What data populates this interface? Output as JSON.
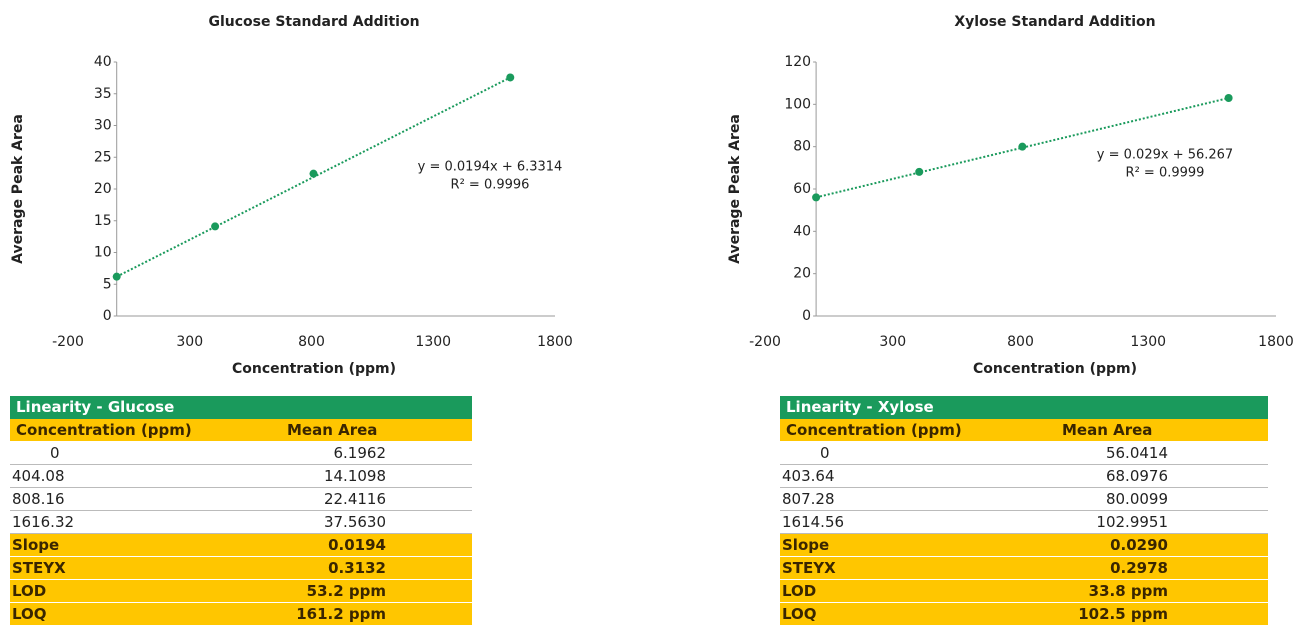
{
  "chart_data": [
    {
      "type": "scatter",
      "title": "Glucose Standard Addition",
      "x_label": "Concentration (ppm)",
      "y_label": "Average Peak Area",
      "x": [
        0,
        404.08,
        808.16,
        1616.32
      ],
      "values": [
        6.1962,
        14.1098,
        22.4116,
        37.563
      ],
      "color": "#1a9a5c",
      "xlim": [
        -200,
        1800
      ],
      "xticks": [
        -200,
        300,
        800,
        1300,
        1800
      ],
      "ylim": [
        0,
        40
      ],
      "yticks": [
        0,
        5,
        10,
        15,
        20,
        25,
        30,
        35,
        40
      ],
      "trendline": "dotted",
      "annotations": [
        "y = 0.0194x + 6.3314",
        "R² = 0.9996"
      ]
    },
    {
      "type": "scatter",
      "title": "Xylose Standard Addition",
      "x_label": "Concentration (ppm)",
      "y_label": "Average Peak Area",
      "x": [
        0,
        403.64,
        807.28,
        1614.56
      ],
      "values": [
        56.0414,
        68.0976,
        80.0099,
        102.9951
      ],
      "color": "#1a9a5c",
      "xlim": [
        -200,
        1800
      ],
      "xticks": [
        -200,
        300,
        800,
        1300,
        1800
      ],
      "ylim": [
        0,
        120
      ],
      "yticks": [
        0,
        20,
        40,
        60,
        80,
        100,
        120
      ],
      "trendline": "dotted",
      "annotations": [
        "y = 0.029x + 56.267",
        "R² = 0.9999"
      ]
    }
  ],
  "tables": [
    {
      "title": "Linearity - Glucose",
      "header": [
        "Concentration (ppm)",
        "Mean Area"
      ],
      "rows": [
        [
          "0",
          "6.1962"
        ],
        [
          "404.08",
          "14.1098"
        ],
        [
          "808.16",
          "22.4116"
        ],
        [
          "1616.32",
          "37.5630"
        ]
      ],
      "stats": [
        [
          "Slope",
          "0.0194"
        ],
        [
          "STEYX",
          "0.3132"
        ],
        [
          "LOD",
          "53.2 ppm"
        ],
        [
          "LOQ",
          "161.2 ppm"
        ]
      ]
    },
    {
      "title": "Linearity - Xylose",
      "header": [
        "Concentration (ppm)",
        "Mean Area"
      ],
      "rows": [
        [
          "0",
          "56.0414"
        ],
        [
          "403.64",
          "68.0976"
        ],
        [
          "807.28",
          "80.0099"
        ],
        [
          "1614.56",
          "102.9951"
        ]
      ],
      "stats": [
        [
          "Slope",
          "0.0290"
        ],
        [
          "STEYX",
          "0.2978"
        ],
        [
          "LOD",
          "33.8 ppm"
        ],
        [
          "LOQ",
          "102.5 ppm"
        ]
      ]
    }
  ]
}
